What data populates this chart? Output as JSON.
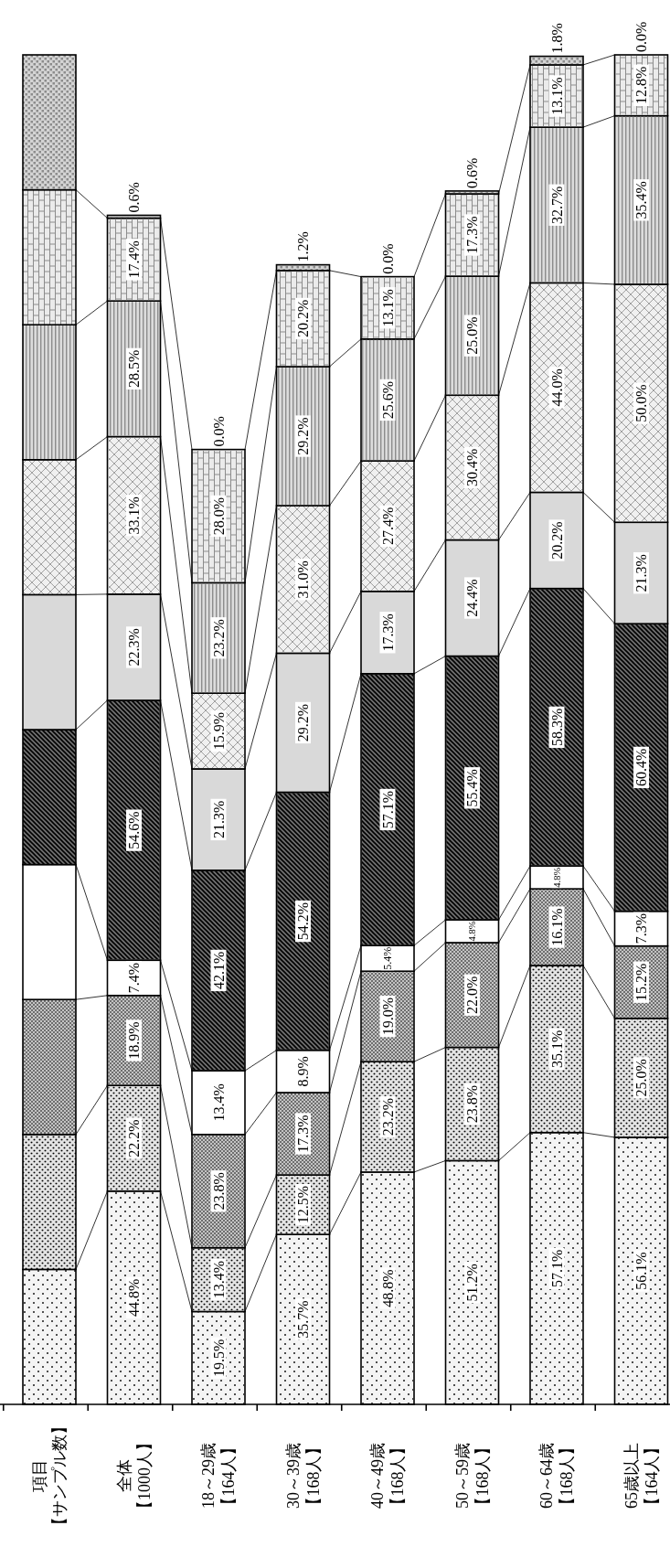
{
  "chart_data": {
    "type": "bar",
    "stacked": true,
    "legend_title": "項目【サンプル数】",
    "categories": [
      "全体【1000人】",
      "18～29歳【164人】",
      "30～39歳【168人】",
      "40～49歳【168人】",
      "50～59歳【168人】",
      "60～64歳【168人】",
      "65歳以上【164人】"
    ],
    "series": [
      {
        "color": "#f4f4f4",
        "values": [
          44.8,
          19.5,
          35.7,
          48.8,
          51.2,
          57.1,
          56.1
        ],
        "value_labels": [
          "44.8%",
          "19.5%",
          "35.7%",
          "48.8%",
          "51.2%",
          "57.1%",
          "56.1%"
        ]
      },
      {
        "color": "#e4e4e4",
        "values": [
          22.2,
          13.4,
          12.5,
          23.2,
          23.8,
          35.1,
          25.0
        ],
        "value_labels": [
          "22.2%",
          "13.4%",
          "12.5%",
          "23.2%",
          "23.8%",
          "35.1%",
          "25.0%"
        ]
      },
      {
        "color": "#c4c4c4",
        "values": [
          18.9,
          23.8,
          17.3,
          19.0,
          22.0,
          16.1,
          15.2
        ],
        "value_labels": [
          "18.9%",
          "23.8%",
          "17.3%",
          "19.0%",
          "22.0%",
          "16.1%",
          "15.2%"
        ]
      },
      {
        "color": "#ffffff",
        "values": [
          7.4,
          13.4,
          8.9,
          5.4,
          4.8,
          4.8,
          7.3
        ],
        "value_labels": [
          "7.4%",
          "13.4%",
          "8.9%",
          "5.4%",
          "4.8%",
          "4.8%",
          "7.3%"
        ]
      },
      {
        "color": "#6e6e6e",
        "values": [
          54.6,
          42.1,
          54.2,
          57.1,
          55.4,
          58.3,
          60.4
        ],
        "value_labels": [
          "54.6%",
          "42.1%",
          "54.2%",
          "57.1%",
          "55.4%",
          "58.3%",
          "60.4%"
        ]
      },
      {
        "color": "#d9d9d9",
        "values": [
          22.3,
          21.3,
          29.2,
          17.3,
          24.4,
          20.2,
          21.3
        ],
        "value_labels": [
          "22.3%",
          "21.3%",
          "29.2%",
          "17.3%",
          "24.4%",
          "20.2%",
          "21.3%"
        ]
      },
      {
        "color": "#f0f0f0",
        "values": [
          33.1,
          15.9,
          31.0,
          27.4,
          30.4,
          44.0,
          50.0
        ],
        "value_labels": [
          "33.1%",
          "15.9%",
          "31.0%",
          "27.4%",
          "30.4%",
          "44.0%",
          "50.0%"
        ]
      },
      {
        "color": "#dcdcdc",
        "values": [
          28.5,
          23.2,
          29.2,
          25.6,
          25.0,
          32.7,
          35.4
        ],
        "value_labels": [
          "28.5%",
          "23.2%",
          "29.2%",
          "25.6%",
          "25.0%",
          "32.7%",
          "35.4%"
        ]
      },
      {
        "color": "#ebebeb",
        "values": [
          17.4,
          28.0,
          20.2,
          13.1,
          17.3,
          13.1,
          12.8
        ],
        "value_labels": [
          "17.4%",
          "28.0%",
          "20.2%",
          "13.1%",
          "17.3%",
          "13.1%",
          "12.8%"
        ]
      },
      {
        "color": "#d4d4d4",
        "values": [
          0.6,
          0.0,
          1.2,
          0.0,
          0.6,
          1.8,
          0.0
        ],
        "value_labels": [
          "0.6%",
          "0.0%",
          "1.2%",
          "0.0%",
          "0.6%",
          "1.8%",
          "0.0%"
        ]
      }
    ]
  }
}
